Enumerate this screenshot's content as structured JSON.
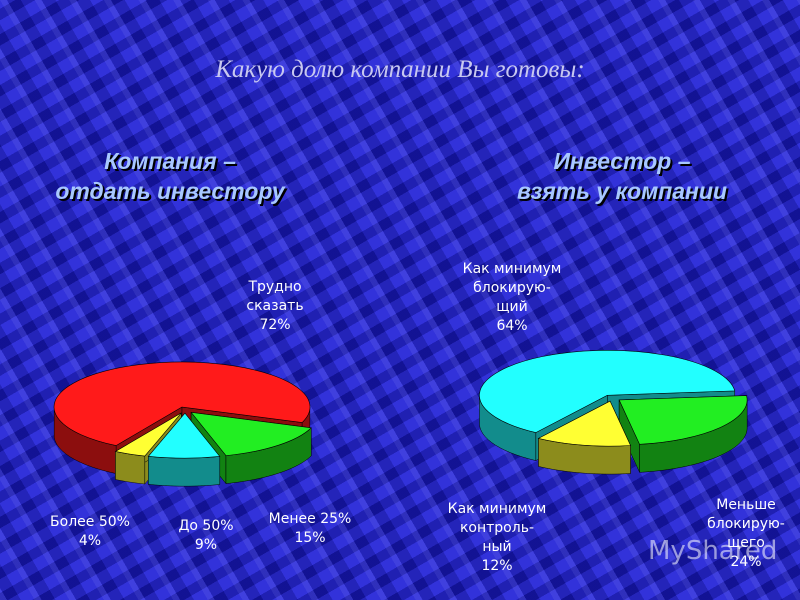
{
  "title": "Какую долю компании Вы готовы:",
  "watermark": "MyShared",
  "chart_data": [
    {
      "type": "pie",
      "title": "Компания –\nотдать инвестору",
      "categories": [
        "Трудно\nсказать",
        "Менее 25%",
        "До 50%",
        "Более 50%"
      ],
      "values": [
        72,
        15,
        9,
        4
      ],
      "value_labels": [
        "72%",
        "15%",
        "9%",
        "4%"
      ],
      "colors": [
        "#ff1a1a",
        "#22ee22",
        "#22ffff",
        "#ffff33"
      ]
    },
    {
      "type": "pie",
      "title": "Инвестор –\nвзять у компании",
      "categories": [
        "Как минимум\nблокирую-\nщий",
        "Меньше\nблокирую-\nщего",
        "Как минимум\nконтроль-\nный"
      ],
      "values": [
        64,
        24,
        12
      ],
      "value_labels": [
        "64%",
        "24%",
        "12%"
      ],
      "colors": [
        "#22ffff",
        "#22ee22",
        "#ffff33"
      ]
    }
  ]
}
